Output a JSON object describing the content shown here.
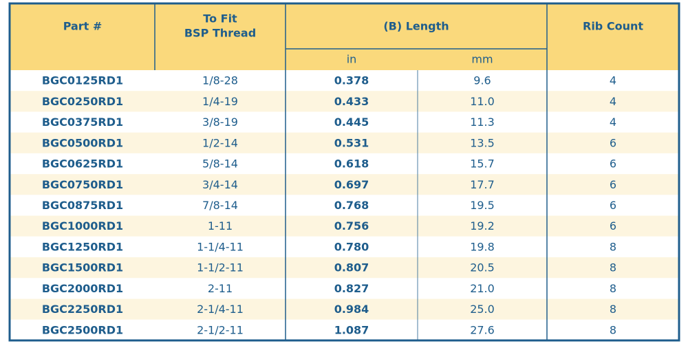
{
  "header": {
    "part": "Part #",
    "thread": [
      "To Fit",
      "BSP Thread"
    ],
    "length": "(B) Length",
    "in": "in",
    "mm": "mm",
    "rib": "Rib Count"
  },
  "table": {
    "rows": [
      [
        "BGC0125RD1",
        "1/8-28",
        "0.378",
        "9.6",
        "4"
      ],
      [
        "BGC0250RD1",
        "1/4-19",
        "0.433",
        "11.0",
        "4"
      ],
      [
        "BGC0375RD1",
        "3/8-19",
        "0.445",
        "11.3",
        "4"
      ],
      [
        "BGC0500RD1",
        "1/2-14",
        "0.531",
        "13.5",
        "6"
      ],
      [
        "BGC0625RD1",
        "5/8-14",
        "0.618",
        "15.7",
        "6"
      ],
      [
        "BGC0750RD1",
        "3/4-14",
        "0.697",
        "17.7",
        "6"
      ],
      [
        "BGC0875RD1",
        "7/8-14",
        "0.768",
        "19.5",
        "6"
      ],
      [
        "BGC1000RD1",
        "1-11",
        "0.756",
        "19.2",
        "6"
      ],
      [
        "BGC1250RD1",
        "1-1/4-11",
        "0.780",
        "19.8",
        "8"
      ],
      [
        "BGC1500RD1",
        "1-1/2-11",
        "0.807",
        "20.5",
        "8"
      ],
      [
        "BGC2000RD1",
        "2-11",
        "0.827",
        "21.0",
        "8"
      ],
      [
        "BGC2250RD1",
        "2-1/4-11",
        "0.984",
        "25.0",
        "8"
      ],
      [
        "BGC2500RD1",
        "2-1/2-11",
        "1.087",
        "27.6",
        "8"
      ]
    ]
  }
}
